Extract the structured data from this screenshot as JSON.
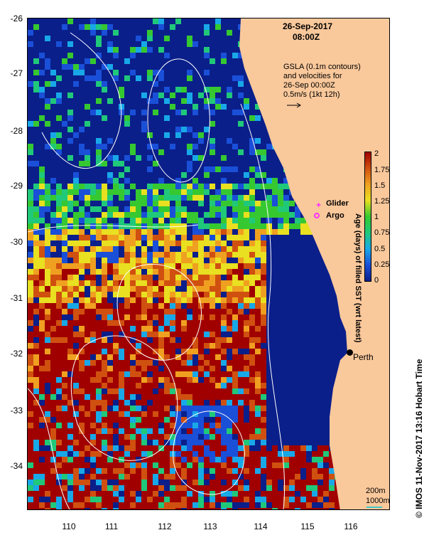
{
  "title": {
    "date": "26-Sep-2017",
    "time": "08:00Z"
  },
  "annotation": {
    "line1": "GSLA (0.1m contours)",
    "line2": "and velocities for",
    "line3": "26-Sep 00:00Z",
    "line4": "0.5m/s (1kt 12h)"
  },
  "legend": {
    "glider": {
      "label": "Glider",
      "color": "#ff33ff"
    },
    "argo": {
      "label": "Argo",
      "color": "#ff33ff"
    }
  },
  "place": {
    "name": "Perth",
    "lon": 115.86,
    "lat": -31.95
  },
  "colorbar": {
    "label": "Age (days) of filled SST (wrt latest)",
    "ticks": [
      "0",
      "0.25",
      "0.5",
      "0.75",
      "1",
      "1.25",
      "1.5",
      "1.75",
      "2"
    ],
    "colors": [
      "#0a1f8a",
      "#1a4fd8",
      "#18a8e8",
      "#20c87a",
      "#36c830",
      "#e8e020",
      "#f0a020",
      "#d05010",
      "#a00000"
    ]
  },
  "isobaths": {
    "line1": "200m",
    "line2": "1000m"
  },
  "axes": {
    "lat_ticks": [
      "-26",
      "-27",
      "-28",
      "-29",
      "-30",
      "-31",
      "-32",
      "-33",
      "-34"
    ],
    "lon_ticks": [
      "110",
      "111",
      "112",
      "113",
      "114",
      "115",
      "116"
    ]
  },
  "caption": "© IMOS 11-Nov-2017 13:16 Hobart Time",
  "map_colors": {
    "land": "#f9c89b",
    "contour": "#ffffff"
  }
}
